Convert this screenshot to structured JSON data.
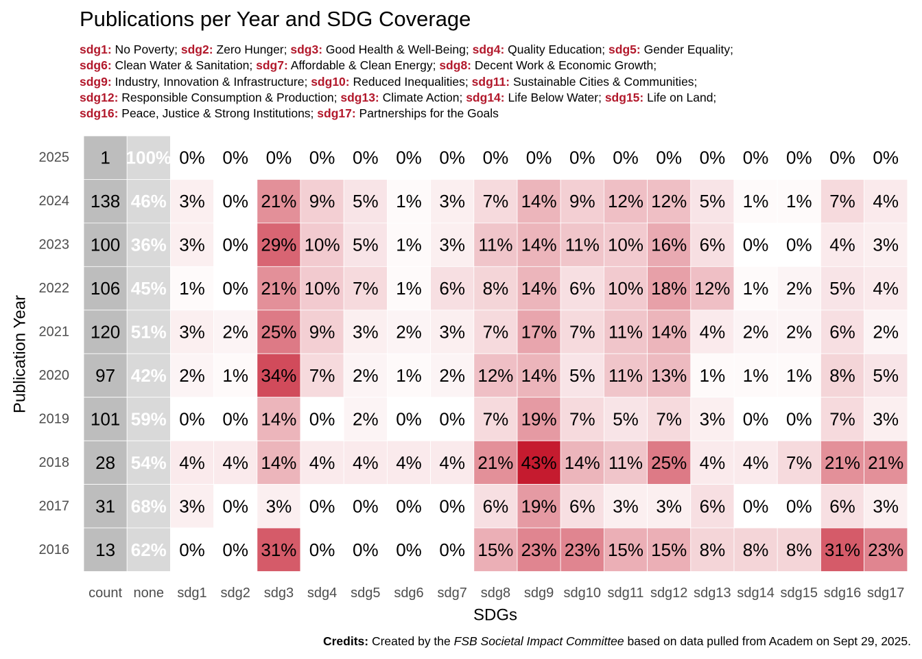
{
  "chart_data": {
    "type": "heatmap",
    "title": "Publications per Year and SDG Coverage",
    "subtitle_lines": [
      [
        [
          "sdg1:",
          "No Poverty;"
        ],
        [
          "sdg2:",
          "Zero Hunger;"
        ],
        [
          "sdg3:",
          "Good Health & Well-Being;"
        ],
        [
          "sdg4:",
          "Quality Education;"
        ],
        [
          "sdg5:",
          "Gender Equality;"
        ]
      ],
      [
        [
          "sdg6:",
          "Clean Water & Sanitation;"
        ],
        [
          "sdg7:",
          "Affordable & Clean Energy;"
        ],
        [
          "sdg8:",
          "Decent Work & Economic Growth;"
        ]
      ],
      [
        [
          "sdg9:",
          "Industry, Innovation & Infrastructure;"
        ],
        [
          "sdg10:",
          "Reduced Inequalities;"
        ],
        [
          "sdg11:",
          "Sustainable Cities & Communities;"
        ]
      ],
      [
        [
          "sdg12:",
          "Responsible Consumption & Production;"
        ],
        [
          "sdg13:",
          "Climate Action;"
        ],
        [
          "sdg14:",
          "Life Below Water;"
        ],
        [
          "sdg15:",
          "Life on Land;"
        ]
      ],
      [
        [
          "sdg16:",
          "Peace, Justice & Strong Institutions;"
        ],
        [
          "sdg17:",
          "Partnerships for the Goals"
        ]
      ]
    ],
    "xlabel": "SDGs",
    "ylabel": "Publication Year",
    "columns": [
      "count",
      "none",
      "sdg1",
      "sdg2",
      "sdg3",
      "sdg4",
      "sdg5",
      "sdg6",
      "sdg7",
      "sdg8",
      "sdg9",
      "sdg10",
      "sdg11",
      "sdg12",
      "sdg13",
      "sdg14",
      "sdg15",
      "sdg16",
      "sdg17"
    ],
    "rows": [
      {
        "year": "2025",
        "count": 1,
        "none": 100,
        "sdg": [
          0,
          0,
          0,
          0,
          0,
          0,
          0,
          0,
          0,
          0,
          0,
          0,
          0,
          0,
          0,
          0,
          0
        ]
      },
      {
        "year": "2024",
        "count": 138,
        "none": 46,
        "sdg": [
          3,
          0,
          21,
          9,
          5,
          1,
          3,
          7,
          14,
          9,
          12,
          12,
          5,
          1,
          1,
          7,
          4
        ]
      },
      {
        "year": "2023",
        "count": 100,
        "none": 36,
        "sdg": [
          3,
          0,
          29,
          10,
          5,
          1,
          3,
          11,
          14,
          11,
          10,
          16,
          6,
          0,
          0,
          4,
          3
        ]
      },
      {
        "year": "2022",
        "count": 106,
        "none": 45,
        "sdg": [
          1,
          0,
          21,
          10,
          7,
          1,
          6,
          8,
          14,
          6,
          10,
          18,
          12,
          1,
          2,
          5,
          4
        ]
      },
      {
        "year": "2021",
        "count": 120,
        "none": 51,
        "sdg": [
          3,
          2,
          25,
          9,
          3,
          2,
          3,
          7,
          17,
          7,
          11,
          14,
          4,
          2,
          2,
          6,
          2
        ]
      },
      {
        "year": "2020",
        "count": 97,
        "none": 42,
        "sdg": [
          2,
          1,
          34,
          7,
          2,
          1,
          2,
          12,
          14,
          5,
          11,
          13,
          1,
          1,
          1,
          8,
          5
        ]
      },
      {
        "year": "2019",
        "count": 101,
        "none": 59,
        "sdg": [
          0,
          0,
          14,
          0,
          2,
          0,
          0,
          7,
          19,
          7,
          5,
          7,
          3,
          0,
          0,
          7,
          3
        ]
      },
      {
        "year": "2018",
        "count": 28,
        "none": 54,
        "sdg": [
          4,
          4,
          14,
          4,
          4,
          4,
          4,
          21,
          43,
          14,
          11,
          25,
          4,
          4,
          7,
          21,
          21
        ]
      },
      {
        "year": "2017",
        "count": 31,
        "none": 68,
        "sdg": [
          3,
          0,
          3,
          0,
          0,
          0,
          0,
          6,
          19,
          6,
          3,
          3,
          6,
          0,
          0,
          6,
          3
        ]
      },
      {
        "year": "2016",
        "count": 13,
        "none": 62,
        "sdg": [
          0,
          0,
          31,
          0,
          0,
          0,
          0,
          15,
          23,
          23,
          15,
          15,
          8,
          8,
          8,
          31,
          23
        ]
      }
    ],
    "value_suffix": "%",
    "colors": {
      "low": "#ffffff",
      "high": "#c51b2f",
      "count_fill": "#bdbdbd",
      "none_fill": "#d9d9d9",
      "code": "#b2182b"
    },
    "grid": false,
    "legend": "none"
  },
  "credits": {
    "label": "Credits:",
    "pre": " Created by the ",
    "org": "FSB Societal Impact Committee",
    "post": " based on data pulled from Academ on Sept 29, 2025."
  }
}
